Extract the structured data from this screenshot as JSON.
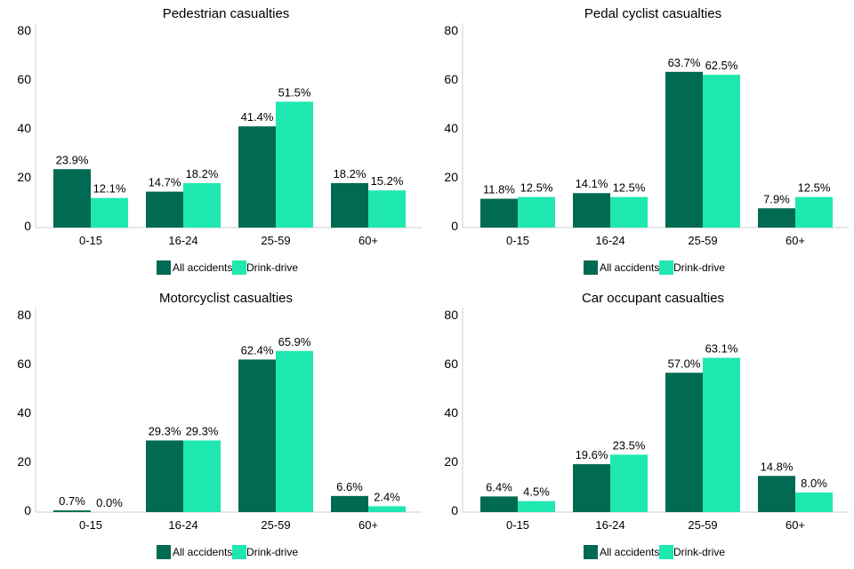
{
  "colors": {
    "all_accidents": "#006a52",
    "drink_drive": "#1ee8b0",
    "axis": "#cfcfcf"
  },
  "legend": {
    "all_accidents": "All accidents",
    "drink_drive": "Drink-drive"
  },
  "chart_data": [
    {
      "type": "bar",
      "title": "Pedestrian casualties",
      "categories": [
        "0-15",
        "16-24",
        "25-59",
        "60+"
      ],
      "ylim": [
        0,
        80
      ],
      "yticks": [
        0,
        20,
        40,
        60,
        80
      ],
      "series": [
        {
          "name": "All accidents",
          "values": [
            23.9,
            14.7,
            41.4,
            18.2
          ],
          "labels": [
            "23.9%",
            "14.7%",
            "41.4%",
            "18.2%"
          ]
        },
        {
          "name": "Drink-drive",
          "values": [
            12.1,
            18.2,
            51.5,
            15.2
          ],
          "labels": [
            "12.1%",
            "18.2%",
            "51.5%",
            "15.2%"
          ]
        }
      ]
    },
    {
      "type": "bar",
      "title": "Pedal cyclist casualties",
      "categories": [
        "0-15",
        "16-24",
        "25-59",
        "60+"
      ],
      "ylim": [
        0,
        80
      ],
      "yticks": [
        0,
        20,
        40,
        60,
        80
      ],
      "series": [
        {
          "name": "All accidents",
          "values": [
            11.8,
            14.1,
            63.7,
            7.9
          ],
          "labels": [
            "11.8%",
            "14.1%",
            "63.7%",
            "7.9%"
          ]
        },
        {
          "name": "Drink-drive",
          "values": [
            12.5,
            12.5,
            62.5,
            12.5
          ],
          "labels": [
            "12.5%",
            "12.5%",
            "62.5%",
            "12.5%"
          ]
        }
      ]
    },
    {
      "type": "bar",
      "title": "Motorcyclist casualties",
      "categories": [
        "0-15",
        "16-24",
        "25-59",
        "60+"
      ],
      "ylim": [
        0,
        80
      ],
      "yticks": [
        0,
        20,
        40,
        60,
        80
      ],
      "series": [
        {
          "name": "All accidents",
          "values": [
            0.7,
            29.3,
            62.4,
            6.6
          ],
          "labels": [
            "0.7%",
            "29.3%",
            "62.4%",
            "6.6%"
          ]
        },
        {
          "name": "Drink-drive",
          "values": [
            0.0,
            29.3,
            65.9,
            2.4
          ],
          "labels": [
            "0.0%",
            "29.3%",
            "65.9%",
            "2.4%"
          ]
        }
      ]
    },
    {
      "type": "bar",
      "title": "Car occupant casualties",
      "categories": [
        "0-15",
        "16-24",
        "25-59",
        "60+"
      ],
      "ylim": [
        0,
        80
      ],
      "yticks": [
        0,
        20,
        40,
        60,
        80
      ],
      "series": [
        {
          "name": "All accidents",
          "values": [
            6.4,
            19.6,
            57.0,
            14.8
          ],
          "labels": [
            "6.4%",
            "19.6%",
            "57.0%",
            "14.8%"
          ]
        },
        {
          "name": "Drink-drive",
          "values": [
            4.5,
            23.5,
            63.1,
            8.0
          ],
          "labels": [
            "4.5%",
            "23.5%",
            "63.1%",
            "8.0%"
          ]
        }
      ]
    }
  ]
}
